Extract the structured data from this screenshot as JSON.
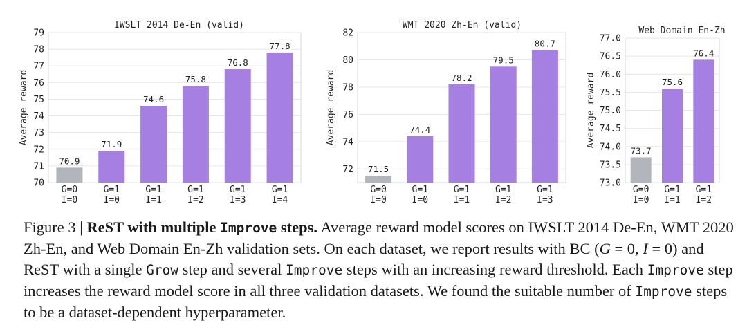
{
  "chart_data": [
    {
      "type": "bar",
      "title": "IWSLT 2014 De-En (valid)",
      "ylabel": "Average reward",
      "xlabel": "",
      "ylim": [
        70,
        79
      ],
      "yticks": [
        "70",
        "71",
        "72",
        "73",
        "74",
        "75",
        "76",
        "77",
        "78",
        "79"
      ],
      "grid": true,
      "categories": [
        [
          "G=0",
          "I=0"
        ],
        [
          "G=1",
          "I=0"
        ],
        [
          "G=1",
          "I=1"
        ],
        [
          "G=1",
          "I=2"
        ],
        [
          "G=1",
          "I=3"
        ],
        [
          "G=1",
          "I=4"
        ]
      ],
      "values": [
        70.9,
        71.9,
        74.6,
        75.8,
        76.8,
        77.8
      ],
      "value_labels": [
        "70.9",
        "71.9",
        "74.6",
        "75.8",
        "76.8",
        "77.8"
      ],
      "colors": [
        "#b3b5bc",
        "#a67fe2",
        "#a67fe2",
        "#a67fe2",
        "#a67fe2",
        "#a67fe2"
      ]
    },
    {
      "type": "bar",
      "title": "WMT 2020 Zh-En (valid)",
      "ylabel": "Average reward",
      "xlabel": "",
      "ylim": [
        71,
        82
      ],
      "yticks": [
        "72",
        "74",
        "76",
        "78",
        "80",
        "82"
      ],
      "grid": true,
      "categories": [
        [
          "G=0",
          "I=0"
        ],
        [
          "G=1",
          "I=0"
        ],
        [
          "G=1",
          "I=1"
        ],
        [
          "G=1",
          "I=2"
        ],
        [
          "G=1",
          "I=3"
        ]
      ],
      "values": [
        71.5,
        74.4,
        78.2,
        79.5,
        80.7
      ],
      "value_labels": [
        "71.5",
        "74.4",
        "78.2",
        "79.5",
        "80.7"
      ],
      "colors": [
        "#b3b5bc",
        "#a67fe2",
        "#a67fe2",
        "#a67fe2",
        "#a67fe2"
      ]
    },
    {
      "type": "bar",
      "title": "Web Domain En-Zh",
      "ylabel": "Average reward",
      "xlabel": "",
      "ylim": [
        73.0,
        77.0
      ],
      "yticks": [
        "73.0",
        "73.5",
        "74.0",
        "74.5",
        "75.0",
        "75.5",
        "76.0",
        "76.5",
        "77.0"
      ],
      "grid": true,
      "categories": [
        [
          "G=0",
          "I=0"
        ],
        [
          "G=1",
          "I=1"
        ],
        [
          "G=1",
          "I=2"
        ]
      ],
      "values": [
        73.7,
        75.6,
        76.4
      ],
      "value_labels": [
        "73.7",
        "75.6",
        "76.4"
      ],
      "colors": [
        "#b3b5bc",
        "#a67fe2",
        "#a67fe2"
      ]
    }
  ],
  "caption": {
    "figure_label": "Figure 3 | ",
    "bold_title_a": "ReST with multiple ",
    "bold_title_code": "Improve",
    "bold_title_b": " steps.",
    "text_1": " Average reward model scores on IWSLT 2014 De-En, WMT 2020 Zh-En, and Web Domain En-Zh validation sets. On each dataset, we report results with BC (",
    "math_g": "G",
    "math_g_eq": " = 0, ",
    "math_i": "I",
    "math_i_eq": " = 0",
    "text_2": ") and ReST with a single ",
    "code_grow": "Grow",
    "text_3": " step and several ",
    "code_improve_1": "Improve",
    "text_4": " steps with an increasing reward threshold. Each ",
    "code_improve_2": "Improve",
    "text_5": " step increases the reward model score in all three validation datasets. We found the suitable number of ",
    "code_improve_3": "Improve",
    "text_6": " steps to be a dataset-dependent hyperparameter."
  }
}
